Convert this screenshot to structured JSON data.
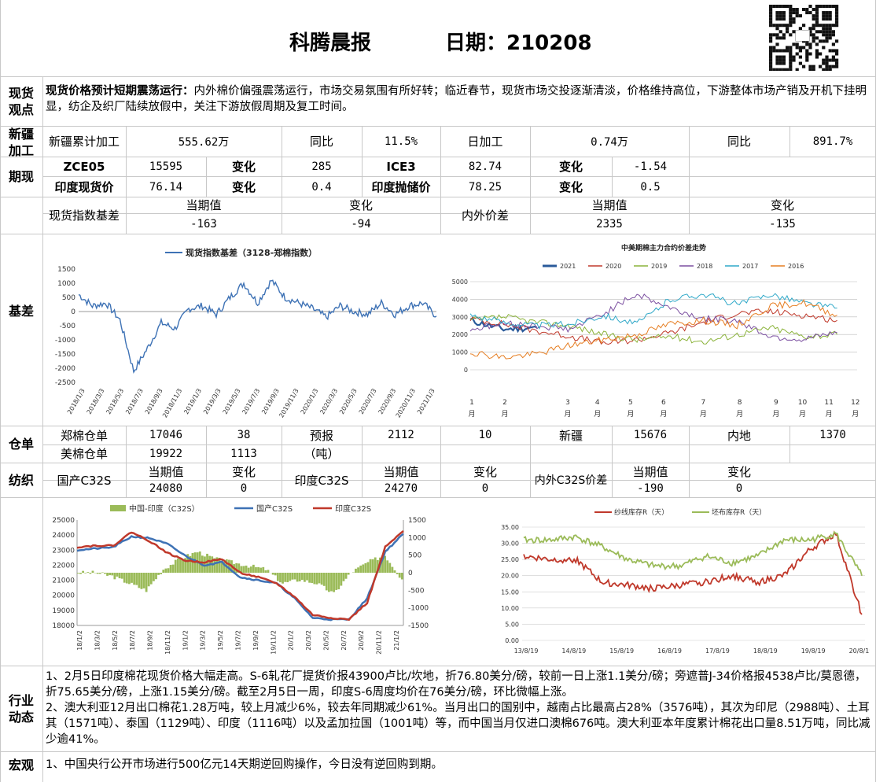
{
  "header": {
    "title": "科腾晨报",
    "date_label": "日期：210208"
  },
  "spot": {
    "label": "现货\n观点",
    "headline": "现货价格预计短期震荡运行：",
    "text": "内外棉价偏强震荡运行，市场交易氛围有所好转；临近春节，现货市场交投逐渐清淡，价格维持高位，下游整体市场产销及开机下挂明显，纺企及织厂陆续放假中，关注下游放假周期及复工时间。"
  },
  "xinjiang": {
    "label": "新疆\n加工",
    "c1": "新疆累计加工",
    "c2": "555.62万",
    "c3": "同比",
    "c4": "11.5%",
    "c5": "日加工",
    "c6": "0.74万",
    "c7": "同比",
    "c8": "891.7%"
  },
  "futures": {
    "label": "期现",
    "row1": [
      "ZCE05",
      "15595",
      "变化",
      "285",
      "ICE3",
      "82.74",
      "变化",
      "-1.54"
    ],
    "row2": [
      "印度现货价",
      "76.14",
      "变化",
      "0.4",
      "印度抛储价",
      "78.25",
      "变化",
      "0.5"
    ]
  },
  "basis": {
    "label": "基差",
    "h1": "现货指数基差",
    "h2": "当期值",
    "h3": "变化",
    "h4": "内外价差",
    "h5": "当期值",
    "h6": "变化",
    "v2": "-163",
    "v3": "-94",
    "v5": "2335",
    "v6": "-135"
  },
  "warehouse": {
    "label": "仓单",
    "r1": [
      "郑棉仓单",
      "17046",
      "38",
      "预报",
      "2112",
      "10",
      "新疆",
      "15676",
      "内地",
      "1370"
    ],
    "r2": [
      "美棉仓单",
      "19922",
      "1113",
      "（吨）"
    ]
  },
  "spinning": {
    "label": "纺织",
    "c1": "国产C32S",
    "c2a": "当期值",
    "c2b": "24080",
    "c3a": "变化",
    "c3b": "0",
    "c4": "印度C32S",
    "c5a": "当期值",
    "c5b": "24270",
    "c6a": "变化",
    "c6b": "0",
    "c7": "内外C32S价差",
    "c8a": "当期值",
    "c8b": "-190",
    "c9a": "变化",
    "c9b": "0"
  },
  "industry": {
    "label": "行业\n动态",
    "p1": "1、2月5日印度棉花现货价格大幅走高。S-6轧花厂提货价报43900卢比/坎地，折76.80美分/磅，较前一日上涨1.1美分/磅；旁遮普J-34价格报4538卢比/莫恩德，折75.65美分/磅，上涨1.15美分/磅。截至2月5日一周，印度S-6周度均价在76美分/磅，环比微幅上涨。",
    "p2": "2、澳大利亚12月出口棉花1.28万吨，较上月减少6%，较去年同期减少61%。当月出口的国别中，越南占比最高占28%（3576吨），其次为印尼（2988吨）、土耳其（1571吨）、泰国（1129吨）、印度（1116吨）以及孟加拉国（1001吨）等，而中国当月仅进口澳棉676吨。澳大利亚本年度累计棉花出口量8.51万吨，同比减少逾41%。"
  },
  "macro": {
    "label": "宏观",
    "text": "1、中国央行公开市场进行500亿元14天期逆回购操作，今日没有逆回购到期。"
  },
  "chart_data": [
    {
      "type": "line",
      "title": "现货指数基差（3128-郑棉指数）",
      "series": [
        {
          "name": "现货指数基差（3128-郑棉指数）",
          "color": "#3e72b5",
          "x": [
            "2018/1/3",
            "2018/3/3",
            "2018/4/10",
            "2018/5/3",
            "2018/5/25",
            "2018/6/20",
            "2018/7/3",
            "2018/9/3",
            "2018/11/3",
            "2019/1/3",
            "2019/3/3",
            "2019/4/3",
            "2019/5/3",
            "2019/6/3",
            "2019/7/3",
            "2019/8/3",
            "2019/9/3",
            "2019/11/3",
            "2020/1/3",
            "2020/2/1",
            "2020/3/3",
            "2020/5/3",
            "2020/7/3",
            "2020/9/3",
            "2020/11/3",
            "2021/1/3",
            "2021/2/5"
          ],
          "values": [
            600,
            200,
            300,
            -300,
            -2100,
            -1300,
            -400,
            -600,
            100,
            200,
            -100,
            500,
            1000,
            300,
            1100,
            500,
            300,
            100,
            -200,
            200,
            0,
            -100,
            300,
            -100,
            200,
            300,
            -163
          ]
        }
      ],
      "x_ticks": [
        "2018/1/3",
        "2018/3/3",
        "2018/5/3",
        "2018/7/3",
        "2018/9/3",
        "2018/11/3",
        "2019/1/3",
        "2019/3/3",
        "2019/5/3",
        "2019/7/3",
        "2019/9/3",
        "2019/11/3",
        "2020/1/3",
        "2020/3/3",
        "2020/5/3",
        "2020/7/3",
        "2020/9/3",
        "2020/11/3",
        "2021/1/3"
      ],
      "y_ticks": [
        "1500",
        "1000",
        "500",
        "0",
        "-500",
        "-1000",
        "-1500",
        "-2000",
        "-2500"
      ],
      "ylim": [
        -2500,
        1500
      ],
      "legend": "top",
      "grid": false
    },
    {
      "type": "line",
      "title": "中美期棉主力合约价差走势",
      "x_ticks": [
        "1月",
        "2月",
        "3月",
        "4月",
        "5月",
        "6月",
        "7月",
        "8月",
        "9月",
        "10月",
        "11月",
        "12月"
      ],
      "y_ticks": [
        "5000",
        "4000",
        "3000",
        "2000",
        "1000",
        "0"
      ],
      "ylim": [
        0,
        5000
      ],
      "legend": "top",
      "grid": true,
      "series": [
        {
          "name": "2021",
          "color": "#2a5a9a",
          "values": [
            2800,
            2300,
            2400
          ]
        },
        {
          "name": "2020",
          "color": "#c0392b",
          "values": [
            2900,
            2600,
            2200,
            1900,
            1500,
            1700,
            2100,
            2700,
            3200,
            3300,
            3100,
            2800
          ]
        },
        {
          "name": "2019",
          "color": "#8bb33a",
          "values": [
            2800,
            3000,
            2700,
            2500,
            2000,
            1700,
            1900,
            1600,
            2000,
            2400,
            1900,
            2000
          ]
        },
        {
          "name": "2018",
          "color": "#7b4fa0",
          "values": [
            2300,
            2600,
            2500,
            2300,
            3200,
            4300,
            3500,
            2900,
            2800,
            1900,
            1700,
            2100
          ]
        },
        {
          "name": "2017",
          "color": "#2fa8c8",
          "values": [
            3100,
            2700,
            2500,
            2600,
            3100,
            2600,
            4000,
            4300,
            3700,
            4300,
            3800,
            3500
          ]
        },
        {
          "name": "2016",
          "color": "#e67e22",
          "values": [
            1000,
            700,
            900,
            1400,
            1700,
            2000,
            2600,
            2800,
            2500,
            3600,
            3800,
            3100
          ]
        }
      ]
    },
    {
      "type": "line",
      "title": "",
      "x_ticks": [
        "18/1/2",
        "18/3/2",
        "18/5/2",
        "18/7/2",
        "18/9/2",
        "18/11/2",
        "19/1/2",
        "19/3/2",
        "19/5/2",
        "19/7/2",
        "19/9/2",
        "19/11/2",
        "20/1/2",
        "20/3/2",
        "20/5/2",
        "20/7/2",
        "20/9/2",
        "20/11/2",
        "21/1/2"
      ],
      "y_ticks": [
        "25000",
        "24000",
        "23000",
        "22000",
        "21000",
        "20000",
        "19000",
        "18000"
      ],
      "y2_ticks": [
        "1500",
        "1000",
        "500",
        "0",
        "-500",
        "-1000",
        "-1500"
      ],
      "ylim": [
        18000,
        25000
      ],
      "y2lim": [
        -1500,
        1500
      ],
      "legend": "top",
      "series": [
        {
          "name": "中国-印度（C32S）",
          "type": "bar",
          "color": "#9bbb59",
          "axis": "right",
          "values": [
            0,
            0,
            -100,
            -300,
            -500,
            100,
            400,
            600,
            400,
            300,
            200,
            100,
            -300,
            -200,
            -300,
            -600,
            0,
            300,
            500,
            -190
          ]
        },
        {
          "name": "国产C32S",
          "color": "#3e72b5",
          "values": [
            23000,
            23100,
            23200,
            23900,
            23800,
            23400,
            22600,
            22000,
            22200,
            21200,
            21000,
            20800,
            19800,
            18500,
            18400,
            18400,
            19800,
            22900,
            24080
          ]
        },
        {
          "name": "印度C32S",
          "color": "#c0392b",
          "values": [
            23200,
            23300,
            23300,
            24200,
            23600,
            22800,
            22300,
            22200,
            22400,
            21500,
            21200,
            20800,
            19900,
            18700,
            18500,
            18400,
            19500,
            23200,
            24270
          ]
        }
      ]
    },
    {
      "type": "line",
      "title": "",
      "x_ticks": [
        "13/8/19",
        "14/8/19",
        "15/8/19",
        "16/8/19",
        "17/8/19",
        "18/8/19",
        "19/8/19",
        "20/8/19"
      ],
      "y_ticks": [
        "35.00",
        "30.00",
        "25.00",
        "20.00",
        "15.00",
        "10.00",
        "5.00",
        "0.00"
      ],
      "ylim": [
        0,
        35
      ],
      "legend": "top",
      "grid": true,
      "series": [
        {
          "name": "纱线库存R（天）",
          "color": "#c0392b",
          "values": [
            26,
            25,
            25,
            18,
            17,
            16,
            17,
            18,
            20,
            18,
            20,
            28,
            33,
            8
          ]
        },
        {
          "name": "坯布库存R（天）",
          "color": "#9bbb59",
          "values": [
            31,
            31,
            32,
            29,
            25,
            23,
            23,
            26,
            24,
            26,
            31,
            31,
            33,
            20
          ]
        }
      ]
    }
  ]
}
